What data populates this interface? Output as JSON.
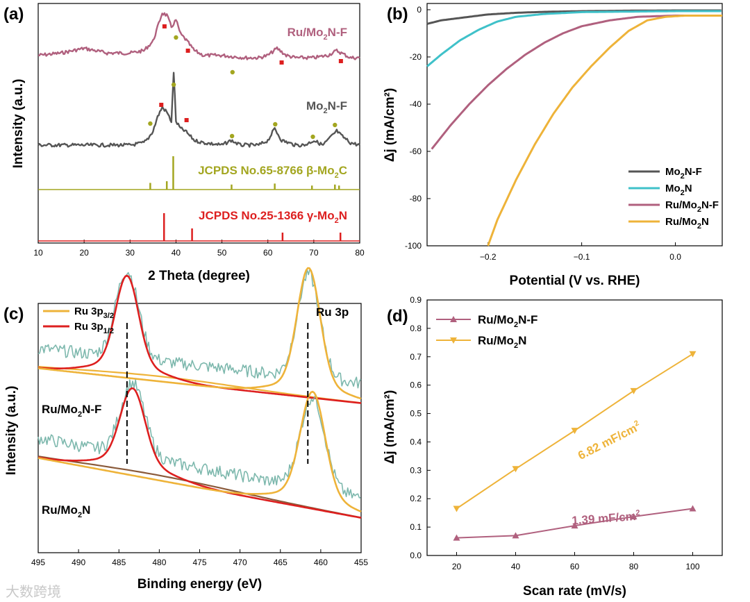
{
  "colors": {
    "mo2nf": "#555555",
    "mo2n": "#3fc1c9",
    "ruf": "#b0607e",
    "ru": "#eeb339",
    "red": "#dd1f1f",
    "olive": "#a3a620",
    "teal": "#7db8ad"
  },
  "watermark": "大数跨境",
  "chart_data": [
    {
      "panel": "(a)",
      "type": "line",
      "xlabel": "2 Theta (degree)",
      "ylabel": "Intensity (a.u.)",
      "xlim": [
        10,
        80
      ],
      "xticks": [
        10,
        20,
        30,
        40,
        50,
        60,
        70,
        80
      ],
      "series": [
        {
          "name": "Ru/Mo₂N-F",
          "x": [
            10,
            15,
            20,
            25,
            30,
            33,
            35,
            36,
            37,
            38,
            39,
            40,
            41,
            42,
            44,
            46,
            50,
            55,
            58,
            60,
            62,
            64,
            66,
            70,
            73,
            75,
            76,
            78,
            80
          ],
          "y": [
            0.78,
            0.79,
            0.81,
            0.79,
            0.79,
            0.8,
            0.84,
            0.9,
            0.96,
            0.95,
            0.9,
            0.93,
            0.87,
            0.85,
            0.8,
            0.78,
            0.78,
            0.77,
            0.77,
            0.78,
            0.81,
            0.78,
            0.77,
            0.77,
            0.78,
            0.8,
            0.79,
            0.77,
            0.77
          ]
        },
        {
          "name": "Mo₂N-F",
          "x": [
            10,
            15,
            20,
            25,
            30,
            33,
            34,
            35,
            36,
            37,
            38,
            39,
            39.5,
            40,
            41,
            42,
            44,
            46,
            50,
            52,
            54,
            58,
            60,
            61.5,
            63,
            66,
            68,
            70,
            72,
            74,
            75,
            76,
            78,
            80
          ],
          "y": [
            0.4,
            0.4,
            0.4,
            0.4,
            0.4,
            0.41,
            0.43,
            0.46,
            0.52,
            0.56,
            0.54,
            0.5,
            0.71,
            0.5,
            0.47,
            0.46,
            0.42,
            0.41,
            0.4,
            0.42,
            0.4,
            0.4,
            0.42,
            0.47,
            0.42,
            0.4,
            0.4,
            0.42,
            0.4,
            0.44,
            0.46,
            0.44,
            0.41,
            0.4
          ]
        }
      ],
      "references": [
        {
          "name": "JCPDS No.65-8766 β-Mo₂C",
          "peaks": [
            34.4,
            38.0,
            39.4,
            52.1,
            61.5,
            69.6,
            74.6,
            75.5
          ],
          "heights": [
            0.2,
            0.25,
            1.0,
            0.15,
            0.18,
            0.12,
            0.15,
            0.12
          ]
        },
        {
          "name": "JCPDS No.25-1366 γ-Mo₂N",
          "peaks": [
            37.4,
            43.5,
            63.2,
            75.8
          ],
          "heights": [
            1.0,
            0.45,
            0.3,
            0.3
          ]
        }
      ],
      "markers": {
        "ruf_square": [
          37.5,
          42.6,
          63.0,
          75.9
        ],
        "ruf_dot": [
          40.0,
          52.3
        ],
        "mo2nf_square": [
          36.8,
          42.3
        ],
        "mo2nf_dot": [
          34.4,
          39.5,
          52.2,
          61.6,
          69.8,
          74.6
        ]
      }
    },
    {
      "panel": "(b)",
      "type": "line",
      "xlabel": "Potential (V vs. RHE)",
      "ylabel": "Δj (mA/cm²)",
      "xlim": [
        -0.265,
        0.05
      ],
      "ylim": [
        -100,
        0
      ],
      "xticks": [
        -0.2,
        -0.1,
        0.0
      ],
      "xticklabels": [
        "−0.2",
        "−0.1",
        "0.0"
      ],
      "yticks": [
        0,
        -20,
        -40,
        -60,
        -80,
        -100
      ],
      "legend": "bottom-right",
      "series": [
        {
          "name": "Mo₂N-F",
          "x": [
            -0.265,
            -0.25,
            -0.22,
            -0.2,
            -0.17,
            -0.14,
            -0.1,
            -0.05,
            0.0,
            0.05
          ],
          "y": [
            -6,
            -4.5,
            -3,
            -2,
            -1.3,
            -0.9,
            -0.6,
            -0.4,
            -0.3,
            -0.3
          ]
        },
        {
          "name": "Mo₂N",
          "x": [
            -0.265,
            -0.25,
            -0.23,
            -0.21,
            -0.19,
            -0.17,
            -0.14,
            -0.1,
            -0.05,
            0.0,
            0.05
          ],
          "y": [
            -24,
            -19,
            -13,
            -8.5,
            -5,
            -3,
            -1.8,
            -1,
            -0.8,
            -0.6,
            -0.6
          ]
        },
        {
          "name": "Ru/Mo₂N-F",
          "x": [
            -0.26,
            -0.24,
            -0.22,
            -0.2,
            -0.18,
            -0.16,
            -0.14,
            -0.12,
            -0.1,
            -0.07,
            -0.04,
            0.0,
            0.05
          ],
          "y": [
            -59,
            -49,
            -40,
            -32,
            -25,
            -19,
            -14,
            -10,
            -7,
            -4.5,
            -3,
            -2.5,
            -2.5
          ]
        },
        {
          "name": "Ru/Mo₂N",
          "x": [
            -0.2,
            -0.19,
            -0.17,
            -0.15,
            -0.13,
            -0.11,
            -0.09,
            -0.07,
            -0.05,
            -0.03,
            -0.01,
            0.01,
            0.03,
            0.05
          ],
          "y": [
            -100,
            -89,
            -72,
            -57,
            -44,
            -33,
            -24,
            -16,
            -9,
            -4.5,
            -3,
            -2.5,
            -2.5,
            -2.5
          ]
        }
      ]
    },
    {
      "panel": "(c)",
      "type": "line",
      "xlabel": "Binding energy (eV)",
      "ylabel": "Intensity (a.u.)",
      "xlim": [
        495,
        455
      ],
      "xticks": [
        495,
        490,
        485,
        480,
        475,
        470,
        465,
        460,
        455
      ],
      "legend": "top-left",
      "legend_entries": [
        "Ru 3p",
        "Ru 3p"
      ],
      "legend_subscripts": [
        "3/2",
        "1/2"
      ],
      "annotation": "Ru 3p",
      "sample_labels": [
        "Ru/Mo₂N-F",
        "Ru/Mo₂N"
      ],
      "dashed_lines_eV": [
        484.0,
        461.6
      ],
      "series": [
        {
          "name": "Ru/Mo₂N-F Ru 3p₁/₂ fit",
          "center": 484.0,
          "width": 1.4,
          "amp": 0.7,
          "baseline_start": 0.74,
          "baseline_end": 0.6
        },
        {
          "name": "Ru/Mo₂N-F Ru 3p₃/₂ fit",
          "center": 461.5,
          "width": 1.4,
          "amp": 0.92,
          "baseline_start": 0.74,
          "baseline_end": 0.6
        },
        {
          "name": "Ru/Mo₂N Ru 3p₁/₂ fit",
          "center": 483.3,
          "width": 1.5,
          "amp": 0.58,
          "baseline_start": 0.38,
          "baseline_end": 0.14
        },
        {
          "name": "Ru/Mo₂N Ru 3p₃/₂ fit",
          "center": 461.0,
          "width": 1.5,
          "amp": 0.82,
          "baseline_start": 0.38,
          "baseline_end": 0.14
        }
      ]
    },
    {
      "panel": "(d)",
      "type": "line",
      "xlabel": "Scan rate (mV/s)",
      "ylabel": "Δj (mA/cm²)",
      "xlim": [
        10,
        110
      ],
      "ylim": [
        0,
        0.9
      ],
      "xticks": [
        20,
        40,
        60,
        80,
        100
      ],
      "yticks": [
        0.0,
        0.1,
        0.2,
        0.3,
        0.4,
        0.5,
        0.6,
        0.7,
        0.8,
        0.9
      ],
      "yticklabels": [
        "0.0",
        "0.1",
        "0.2",
        "0.3",
        "0.4",
        "0.5",
        "0.6",
        "0.7",
        "0.8",
        "0.9"
      ],
      "legend": "top-left",
      "series": [
        {
          "name": "Ru/Mo₂N-F",
          "marker": "triangle-up",
          "x": [
            20,
            40,
            60,
            80,
            100
          ],
          "y": [
            0.062,
            0.07,
            0.105,
            0.137,
            0.165
          ]
        },
        {
          "name": "Ru/Mo₂N",
          "marker": "triangle-down",
          "x": [
            20,
            40,
            60,
            80,
            100
          ],
          "y": [
            0.165,
            0.305,
            0.44,
            0.58,
            0.71
          ]
        }
      ],
      "annotations": [
        "6.82 mF/cm²",
        "1.39 mF/cm²"
      ]
    }
  ]
}
